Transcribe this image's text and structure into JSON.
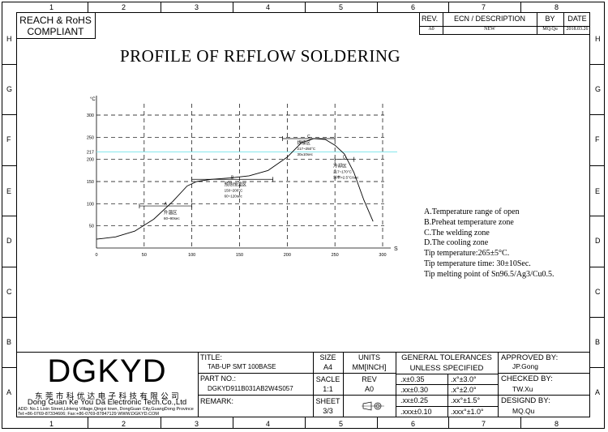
{
  "compliance": {
    "line1": "REACH & RoHS",
    "line2": "COMPLIANT"
  },
  "zones": {
    "top": [
      "1",
      "2",
      "3",
      "4",
      "5",
      "6",
      "7",
      "8"
    ],
    "left": [
      "H",
      "G",
      "F",
      "E",
      "D",
      "C",
      "B",
      "A"
    ]
  },
  "revision": {
    "headers": {
      "rev": "REV.",
      "ecn": "ECN / DESCRIPTION",
      "by": "BY",
      "date": "DATE"
    },
    "row": {
      "rev": "A0",
      "ecn": "NEW",
      "by": "MQ.Qu",
      "date": "2018.03.26"
    }
  },
  "drawing_title": "PROFILE OF REFLOW SOLDERING",
  "chart_data": {
    "type": "line",
    "ylabel": "°C",
    "xlabel": "S",
    "x_ticks": [
      "0",
      "50",
      "100",
      "150",
      "200",
      "250",
      "300"
    ],
    "y_ticks": [
      "300",
      "250",
      "217",
      "200",
      "150",
      "100",
      "50"
    ],
    "xlim": [
      0,
      310
    ],
    "ylim": [
      0,
      330
    ],
    "liquidus": 217,
    "x": [
      0,
      20,
      40,
      60,
      80,
      95,
      105,
      120,
      140,
      160,
      180,
      200,
      215,
      228,
      240,
      250,
      260,
      270,
      280,
      290
    ],
    "y": [
      20,
      25,
      38,
      65,
      105,
      140,
      150,
      155,
      158,
      163,
      175,
      205,
      238,
      247,
      245,
      232,
      212,
      170,
      110,
      60
    ],
    "zones": [
      {
        "letter": "A",
        "name": "升温区",
        "detail": "60~90sec",
        "x1": 45,
        "x2": 100,
        "y": 95
      },
      {
        "letter": "B",
        "name": "预热恒温区",
        "detail1": "150~200°C",
        "detail2": "60~120sec",
        "x1": 100,
        "x2": 185,
        "y": 155
      },
      {
        "letter": "C",
        "name": "焊接区",
        "detail1": "217~250°C",
        "detail2": "30±10sec",
        "x1": 195,
        "x2": 250,
        "y": 247
      },
      {
        "letter": "D",
        "name": "冷却区",
        "detail1": "217~170°C",
        "detail2": "斜率>2.5°C/sec",
        "x1": 250,
        "x2": 270,
        "y": 200
      }
    ]
  },
  "notes": [
    "A.Temperature range of open",
    "B.Preheat temperature zone",
    "C.The welding zone",
    "D.The cooling zone",
    "Tip temperature:265±5°C.",
    "Tip temperature time: 30±10Sec.",
    "Tip melting point of Sn96.5/Ag3/Cu0.5."
  ],
  "company": {
    "logo": "DGKYD",
    "name_cn": "东 莞 市 科 优 达 电 子 科 技 有 限 公 司",
    "name_en": "Dong Guan Ke You Da Electronic Tech.Co.,Ltd",
    "address": "ADD: No.1 Lixin Street,LiHeng Village,Qingxi town, DongGuan City,GuangDong Province",
    "contact": "Tel:+86-0769-87334606; Fax:+86-0769-87847129  WWW.DGKYD.COM"
  },
  "titleblock": {
    "title_label": "TITLE:",
    "title_value": "TAB-UP SMT 100BASE",
    "partno_label": "PART NO.:",
    "partno_value": "DGKYD911B031AB2W4S057",
    "remark_label": "REMARK:",
    "size_label": "SIZE",
    "size_value": "A4",
    "units_label": "UNITS",
    "units_value": "MM[INCH]",
    "scale_label": "SACLE",
    "scale_value": "1:1",
    "rev_label": "REV",
    "rev_value": "A0",
    "sheet_label": "SHEET",
    "sheet_value": "3/3",
    "tol_label1": "GENERAL TOLERANCES",
    "tol_label2": "UNLESS SPECIFIED",
    "tol": [
      [
        ".x±0.35",
        ".x°±3.0°"
      ],
      [
        ".xx±0.30",
        ".x°±2.0°"
      ],
      [
        ".xx±0.25",
        ".xx°±1.5°"
      ],
      [
        ".xxx±0.10",
        ".xxx°±1.0°"
      ]
    ],
    "approved_label": "APPROVED BY:",
    "approved_value": "JP.Gong",
    "checked_label": "CHECKED BY:",
    "checked_value": "TW.Xu",
    "designed_label": "DESIGND BY:",
    "designed_value": "MQ.Qu"
  }
}
